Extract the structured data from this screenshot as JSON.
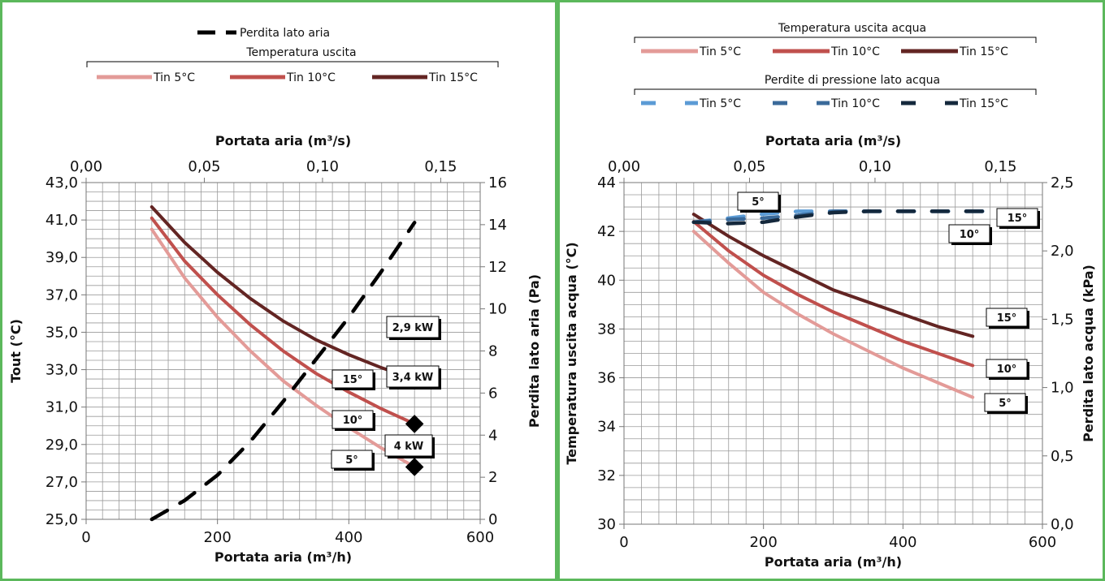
{
  "chart_data": [
    {
      "type": "line",
      "x_axis": {
        "label": "Portata aria (m³/h)",
        "range": [
          0,
          600
        ],
        "ticks": [
          "0",
          "200",
          "400",
          "600"
        ]
      },
      "x2_axis": {
        "label": "Portata aria (m³/s)",
        "range": [
          0,
          0.1667
        ],
        "ticks": [
          "0,00",
          "0,05",
          "0,10",
          "0,15"
        ]
      },
      "y_axis": {
        "label": "Tout (°C)",
        "range": [
          25,
          43
        ],
        "ticks": [
          "25,0",
          "27,0",
          "29,0",
          "31,0",
          "33,0",
          "35,0",
          "37,0",
          "39,0",
          "41,0",
          "43,0"
        ]
      },
      "y2_axis": {
        "label": "Perdita lato aria (Pa)",
        "range": [
          0,
          16
        ],
        "ticks": [
          "0",
          "2",
          "4",
          "6",
          "8",
          "10",
          "12",
          "14",
          "16"
        ]
      },
      "grid": true,
      "legend": {
        "pressure_entry": "Perdita lato aria",
        "group_title": "Temperatura uscita",
        "entries": [
          "Tin 5°C",
          "Tin 10°C",
          "Tin 15°C"
        ]
      },
      "series": [
        {
          "name": "Tin 5°C",
          "axis": "left",
          "color": "#e39b98",
          "style": "solid",
          "points": [
            [
              100,
              40.5
            ],
            [
              150,
              37.9
            ],
            [
              200,
              35.8
            ],
            [
              250,
              34.0
            ],
            [
              300,
              32.4
            ],
            [
              350,
              31.1
            ],
            [
              400,
              29.9
            ],
            [
              450,
              28.8
            ],
            [
              500,
              27.8
            ]
          ]
        },
        {
          "name": "Tin 10°C",
          "axis": "left",
          "color": "#c0504d",
          "style": "solid",
          "points": [
            [
              100,
              41.1
            ],
            [
              150,
              38.8
            ],
            [
              200,
              37.0
            ],
            [
              250,
              35.4
            ],
            [
              300,
              34.0
            ],
            [
              350,
              32.8
            ],
            [
              400,
              31.8
            ],
            [
              450,
              30.9
            ],
            [
              500,
              30.1
            ]
          ]
        },
        {
          "name": "Tin 15°C",
          "axis": "left",
          "color": "#632523",
          "style": "solid",
          "points": [
            [
              100,
              41.7
            ],
            [
              150,
              39.8
            ],
            [
              200,
              38.2
            ],
            [
              250,
              36.8
            ],
            [
              300,
              35.6
            ],
            [
              350,
              34.6
            ],
            [
              400,
              33.8
            ],
            [
              450,
              33.1
            ],
            [
              500,
              32.5
            ]
          ]
        },
        {
          "name": "Perdita lato aria",
          "axis": "right",
          "color": "#000000",
          "style": "dashed",
          "points": [
            [
              100,
              0.0
            ],
            [
              150,
              0.9
            ],
            [
              200,
              2.1
            ],
            [
              250,
              3.7
            ],
            [
              300,
              5.6
            ],
            [
              350,
              7.6
            ],
            [
              400,
              9.6
            ],
            [
              450,
              11.8
            ],
            [
              500,
              14.1
            ]
          ]
        }
      ],
      "markers": [
        [
          500,
          32.5
        ],
        [
          500,
          30.1
        ],
        [
          500,
          27.8
        ]
      ],
      "annotations": [
        {
          "text": "2,9 kW",
          "x": 500,
          "y": 32.5
        },
        {
          "text": "3,4 kW",
          "x": 500,
          "y": 30.1
        },
        {
          "text": "4 kW",
          "x": 500,
          "y": 27.8
        },
        {
          "text": "15°",
          "x": 500,
          "y": 32.5
        },
        {
          "text": "10°",
          "x": 500,
          "y": 30.1
        },
        {
          "text": "5°",
          "x": 500,
          "y": 27.8
        }
      ]
    },
    {
      "type": "line",
      "x_axis": {
        "label": "Portata aria (m³/h)",
        "range": [
          0,
          600
        ],
        "ticks": [
          "0",
          "200",
          "400",
          "600"
        ]
      },
      "x2_axis": {
        "label": "Portata aria (m³/s)",
        "range": [
          0,
          0.1667
        ],
        "ticks": [
          "0,00",
          "0,05",
          "0,10",
          "0,15"
        ]
      },
      "y_axis": {
        "label": "Temperatura uscita acqua (°C)",
        "range": [
          30,
          44
        ],
        "ticks": [
          "30",
          "32",
          "34",
          "36",
          "38",
          "40",
          "42",
          "44"
        ]
      },
      "y2_axis": {
        "label": "Perdita lato acqua (kPa)",
        "range": [
          0,
          2.5
        ],
        "ticks": [
          "0,0",
          "0,5",
          "1,0",
          "1,5",
          "2,0",
          "2,5"
        ]
      },
      "grid": true,
      "legend": {
        "group1_title": "Temperatura uscita acqua",
        "group1_entries": [
          "Tin 5°C",
          "Tin 10°C",
          "Tin 15°C"
        ],
        "group2_title": "Perdite di pressione lato acqua",
        "group2_entries": [
          "Tin 5°C",
          "Tin 10°C",
          "Tin 15°C"
        ]
      },
      "series": [
        {
          "name": "Tin 5°C",
          "axis": "left",
          "color": "#e39b98",
          "style": "solid",
          "points": [
            [
              100,
              42.0
            ],
            [
              150,
              40.7
            ],
            [
              200,
              39.5
            ],
            [
              250,
              38.6
            ],
            [
              300,
              37.8
            ],
            [
              350,
              37.1
            ],
            [
              400,
              36.4
            ],
            [
              450,
              35.8
            ],
            [
              500,
              35.2
            ]
          ]
        },
        {
          "name": "Tin 10°C",
          "axis": "left",
          "color": "#c0504d",
          "style": "solid",
          "points": [
            [
              100,
              42.4
            ],
            [
              150,
              41.2
            ],
            [
              200,
              40.2
            ],
            [
              250,
              39.4
            ],
            [
              300,
              38.7
            ],
            [
              350,
              38.1
            ],
            [
              400,
              37.5
            ],
            [
              450,
              37.0
            ],
            [
              500,
              36.5
            ]
          ]
        },
        {
          "name": "Tin 15°C",
          "axis": "left",
          "color": "#632523",
          "style": "solid",
          "points": [
            [
              100,
              42.7
            ],
            [
              150,
              41.8
            ],
            [
              200,
              41.0
            ],
            [
              250,
              40.3
            ],
            [
              300,
              39.6
            ],
            [
              350,
              39.1
            ],
            [
              400,
              38.6
            ],
            [
              450,
              38.1
            ],
            [
              500,
              37.7
            ]
          ]
        },
        {
          "name": "Tin 5°C",
          "axis": "right",
          "color": "#5b9bd5",
          "style": "dashed",
          "points": [
            [
              100,
              2.21
            ],
            [
              150,
              2.24
            ],
            [
              200,
              2.27
            ],
            [
              250,
              2.29
            ],
            [
              300,
              2.29
            ],
            [
              350,
              2.29
            ],
            [
              400,
              2.29
            ],
            [
              450,
              2.29
            ],
            [
              500,
              2.29
            ],
            [
              520,
              2.29
            ]
          ]
        },
        {
          "name": "Tin 10°C",
          "axis": "right",
          "color": "#3a6a9a",
          "style": "dashed",
          "points": [
            [
              100,
              2.21
            ],
            [
              150,
              2.23
            ],
            [
              200,
              2.24
            ],
            [
              250,
              2.26
            ],
            [
              300,
              2.29
            ],
            [
              350,
              2.29
            ],
            [
              400,
              2.29
            ],
            [
              450,
              2.29
            ],
            [
              500,
              2.29
            ],
            [
              520,
              2.29
            ]
          ]
        },
        {
          "name": "Tin 15°C",
          "axis": "right",
          "color": "#14283c",
          "style": "dashed",
          "points": [
            [
              100,
              2.21
            ],
            [
              150,
              2.2
            ],
            [
              200,
              2.21
            ],
            [
              250,
              2.25
            ],
            [
              300,
              2.28
            ],
            [
              350,
              2.29
            ],
            [
              400,
              2.29
            ],
            [
              450,
              2.29
            ],
            [
              500,
              2.29
            ],
            [
              520,
              2.29
            ]
          ]
        }
      ],
      "annotations": [
        {
          "text": "5°",
          "x": 180,
          "y": 2.4
        },
        {
          "text": "10°",
          "x": 500,
          "y": 2.15
        },
        {
          "text": "15°",
          "x": 580,
          "y": 2.28
        },
        {
          "text": "15°",
          "x": 580,
          "y": 37.7
        },
        {
          "text": "10°",
          "x": 580,
          "y": 36.5
        },
        {
          "text": "5°",
          "x": 580,
          "y": 35.2
        }
      ]
    }
  ]
}
